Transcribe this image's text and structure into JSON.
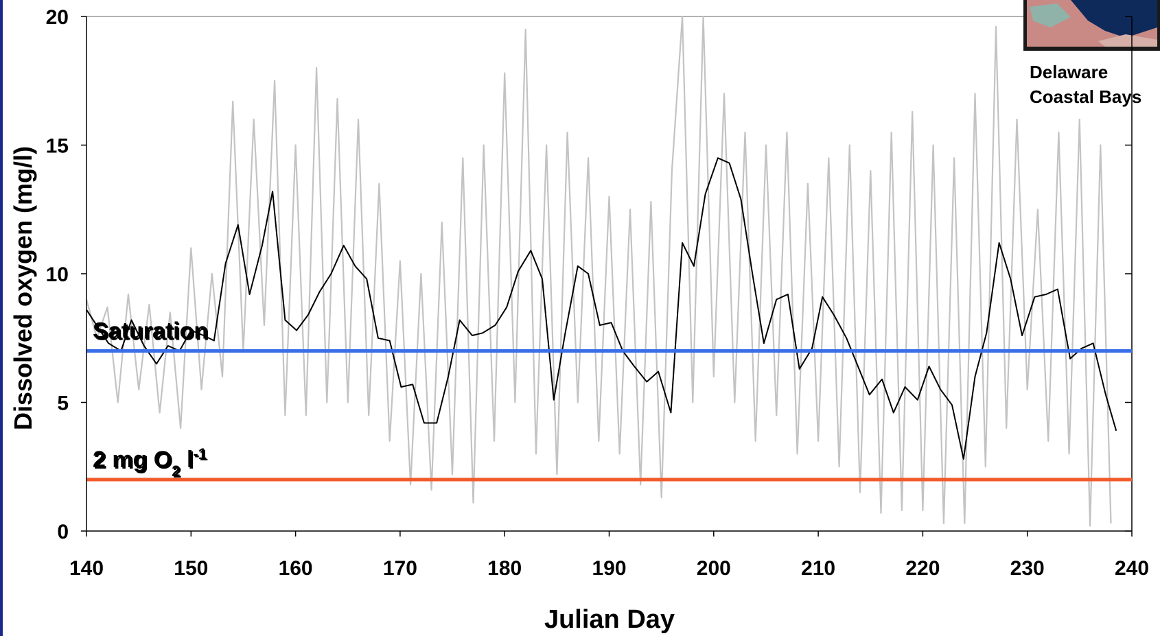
{
  "chart_data": {
    "type": "line",
    "x_label": "Julian Day",
    "y_label": "Dissolved oxygen (mg/l)",
    "xlim": [
      140,
      240
    ],
    "xticks": [
      140,
      150,
      160,
      170,
      180,
      190,
      200,
      210,
      220,
      230,
      240
    ],
    "ylim": [
      0,
      20
    ],
    "yticks": [
      0,
      5,
      10,
      15,
      20
    ],
    "inset_caption": [
      "Delaware",
      "Coastal Bays"
    ],
    "series": [
      {
        "color": "#c3c3c3",
        "x": [
          140,
          141,
          142,
          143,
          144,
          145,
          146,
          147,
          148,
          149,
          150,
          151,
          152,
          153,
          154,
          155,
          156,
          157,
          158,
          159,
          160,
          161,
          162,
          163,
          164,
          165,
          166,
          167,
          168,
          169,
          170,
          171,
          172,
          173,
          174,
          175,
          176,
          177,
          178,
          179,
          180,
          181,
          182,
          183,
          184,
          185,
          186,
          187,
          188,
          189,
          190,
          191,
          192,
          193,
          194,
          195,
          196,
          197,
          198,
          199,
          200,
          201,
          202,
          203,
          204,
          205,
          206,
          207,
          208,
          209,
          210,
          211,
          212,
          213,
          214,
          215,
          216,
          217,
          218,
          219,
          220,
          221,
          222,
          223,
          224,
          225,
          226,
          227,
          228,
          229,
          230,
          231,
          232,
          233,
          234,
          235,
          236,
          237,
          238
        ],
        "values": [
          9.0,
          7.5,
          8.7,
          5.0,
          9.2,
          5.5,
          8.8,
          4.6,
          8.5,
          4.0,
          11.0,
          5.5,
          10.0,
          6.0,
          16.7,
          7.0,
          16.0,
          8.0,
          17.5,
          4.5,
          15.0,
          4.5,
          18.0,
          5.0,
          16.8,
          5.0,
          16.0,
          4.5,
          13.5,
          3.5,
          10.5,
          1.8,
          10.0,
          1.6,
          12.0,
          2.2,
          14.5,
          1.1,
          15.0,
          3.5,
          17.8,
          5.0,
          19.5,
          3.0,
          15.0,
          2.2,
          15.5,
          5.0,
          14.5,
          3.5,
          13.0,
          3.0,
          12.5,
          1.8,
          12.8,
          1.3,
          14.0,
          20.0,
          5.0,
          20.0,
          6.0,
          17.0,
          5.0,
          15.5,
          3.5,
          15.0,
          4.5,
          15.5,
          3.0,
          13.5,
          3.5,
          14.5,
          2.5,
          15.0,
          1.5,
          14.0,
          0.7,
          15.5,
          0.8,
          16.3,
          0.8,
          15.0,
          0.3,
          14.5,
          0.3,
          17.0,
          2.5,
          19.6,
          4.0,
          16.0,
          5.5,
          12.5,
          3.5,
          15.5,
          3.0,
          16.0,
          0.2,
          15.0,
          0.3
        ]
      },
      {
        "color": "#000000",
        "x": [
          140,
          142.1,
          143.3,
          144.3,
          145.5,
          146.7,
          147.8,
          148.9,
          150,
          151.2,
          152.2,
          153.3,
          154.5,
          155.6,
          156.8,
          157.8,
          159,
          160.1,
          161.2,
          162.3,
          163.4,
          164.6,
          165.7,
          166.8,
          167.9,
          169,
          170.1,
          171.2,
          172.3,
          173.5,
          174.6,
          175.7,
          176.9,
          177.9,
          179.1,
          180.2,
          181.3,
          182.5,
          183.6,
          184.7,
          185.8,
          187,
          188,
          189.1,
          190.2,
          191.3,
          192.4,
          193.6,
          194.7,
          195.9,
          197,
          198.1,
          199.2,
          200.4,
          201.5,
          202.6,
          203.7,
          204.8,
          206,
          207.1,
          208.2,
          209.4,
          210.4,
          211.5,
          212.7,
          213.8,
          214.9,
          216.1,
          217.2,
          218.3,
          219.5,
          220.6,
          221.7,
          222.8,
          223.9,
          225,
          226.1,
          227.3,
          228.4,
          229.5,
          230.7,
          231.8,
          232.9,
          234.1,
          235.2,
          236.3,
          237.5,
          238.5
        ],
        "values": [
          8.6,
          7.3,
          7.0,
          8.2,
          7.2,
          6.5,
          7.2,
          7.0,
          7.8,
          7.6,
          7.4,
          10.4,
          11.9,
          9.2,
          11.1,
          13.2,
          8.2,
          7.8,
          8.4,
          9.3,
          10.0,
          11.1,
          10.3,
          9.8,
          7.5,
          7.4,
          5.6,
          5.7,
          4.2,
          4.2,
          6.0,
          8.2,
          7.6,
          7.7,
          8.0,
          8.7,
          10.1,
          10.9,
          9.8,
          5.1,
          7.7,
          10.3,
          10.0,
          8.0,
          8.1,
          7.0,
          6.4,
          5.8,
          6.2,
          4.6,
          11.2,
          10.3,
          13.1,
          14.5,
          14.3,
          12.9,
          10.0,
          7.3,
          9.0,
          9.2,
          6.3,
          7.1,
          9.1,
          8.4,
          7.5,
          6.4,
          5.3,
          5.9,
          4.6,
          5.6,
          5.1,
          6.4,
          5.5,
          4.9,
          2.8,
          6.0,
          7.7,
          11.2,
          9.8,
          7.6,
          9.1,
          9.2,
          9.4,
          6.7,
          7.1,
          7.3,
          5.3,
          3.9
        ]
      }
    ],
    "annotations": [
      {
        "label": [
          "Saturation"
        ],
        "y": 7,
        "color": "#3a6ee8",
        "text_color": "#3a6ee8"
      },
      {
        "label": [
          "2 mg O",
          "2",
          " l",
          "-1"
        ],
        "y": 2,
        "color": "#f25a2a",
        "text_color": "#e8101a"
      }
    ]
  }
}
